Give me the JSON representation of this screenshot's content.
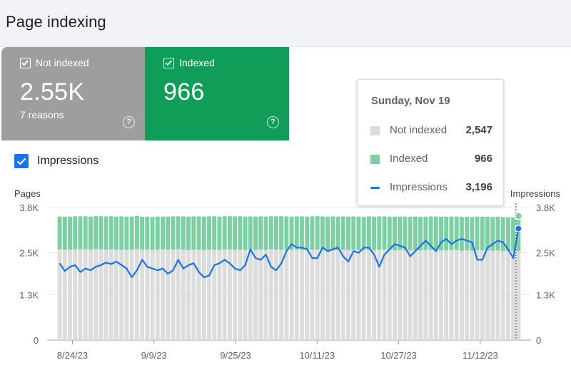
{
  "header": {
    "title": "Page indexing"
  },
  "cards": {
    "not_indexed": {
      "label": "Not indexed",
      "value": "2.55K",
      "sub": "7 reasons",
      "help": "?"
    },
    "indexed": {
      "label": "Indexed",
      "value": "966",
      "help": "?"
    }
  },
  "impressions_toggle": {
    "label": "Impressions",
    "checked": true
  },
  "tooltip": {
    "date": "Sunday, Nov 19",
    "rows": [
      {
        "name": "Not indexed",
        "value": "2,547"
      },
      {
        "name": "Indexed",
        "value": "966"
      },
      {
        "name": "Impressions",
        "value": "3,196"
      }
    ]
  },
  "colors": {
    "not_indexed": "#dcdcdc",
    "indexed": "#7dcfa4",
    "impressions": "#1a73e8",
    "card_not_indexed": "#9e9e9e",
    "card_indexed": "#0f9d58"
  },
  "chart_data": {
    "type": "bar",
    "title": "",
    "left_axis_label": "Pages",
    "right_axis_label": "Impressions",
    "y_ticks": [
      {
        "value": 0,
        "label": "0"
      },
      {
        "value": 1300,
        "label": "1.3K"
      },
      {
        "value": 2500,
        "label": "2.5K"
      },
      {
        "value": 3800,
        "label": "3.8K"
      }
    ],
    "ylim": [
      0,
      3800
    ],
    "x_start": "2023-08-21",
    "x_end": "2023-11-20",
    "x_ticks": [
      "8/24/23",
      "9/9/23",
      "9/25/23",
      "10/11/23",
      "10/27/23",
      "11/12/23"
    ],
    "x_tick_dates": [
      "2023-08-24",
      "2023-09-09",
      "2023-09-25",
      "2023-10-11",
      "2023-10-27",
      "2023-11-12"
    ],
    "highlight_date": "2023-11-19",
    "series": [
      {
        "name": "Not indexed",
        "type": "stacked-bar",
        "values": [
          2600,
          2590,
          2590,
          2600,
          2600,
          2610,
          2590,
          2610,
          2600,
          2590,
          2600,
          2590,
          2590,
          2580,
          2590,
          2600,
          2590,
          2590,
          2580,
          2590,
          2600,
          2590,
          2590,
          2600,
          2590,
          2580,
          2590,
          2590,
          2580,
          2590,
          2590,
          2580,
          2600,
          2600,
          2590,
          2590,
          2580,
          2590,
          2580,
          2590,
          2580,
          2600,
          2590,
          2590,
          2590,
          2580,
          2590,
          2590,
          2580,
          2590,
          2600,
          2590,
          2580,
          2590,
          2580,
          2590,
          2580,
          2590,
          2580,
          2570,
          2590,
          2580,
          2590,
          2590,
          2580,
          2570,
          2580,
          2580,
          2570,
          2580,
          2570,
          2580,
          2590,
          2580,
          2570,
          2570,
          2580,
          2580,
          2560,
          2570,
          2560,
          2580,
          2570,
          2570,
          2560,
          2570,
          2550,
          2550,
          2550,
          2547
        ]
      },
      {
        "name": "Indexed",
        "type": "stacked-bar",
        "values": [
          940,
          945,
          950,
          950,
          945,
          940,
          950,
          945,
          950,
          955,
          950,
          950,
          955,
          960,
          950,
          960,
          945,
          945,
          950,
          950,
          940,
          950,
          955,
          950,
          955,
          960,
          955,
          955,
          960,
          955,
          958,
          960,
          950,
          950,
          955,
          960,
          960,
          955,
          960,
          955,
          960,
          950,
          955,
          960,
          955,
          960,
          955,
          955,
          960,
          955,
          950,
          955,
          960,
          955,
          960,
          955,
          960,
          955,
          960,
          965,
          955,
          960,
          955,
          955,
          960,
          965,
          960,
          960,
          965,
          960,
          965,
          960,
          955,
          960,
          965,
          965,
          960,
          960,
          970,
          965,
          970,
          960,
          965,
          965,
          970,
          965,
          970,
          970,
          968,
          966
        ]
      },
      {
        "name": "Impressions",
        "type": "line",
        "values": [
          2200,
          1980,
          2100,
          2150,
          1950,
          2050,
          2000,
          2100,
          2150,
          2220,
          2180,
          2250,
          2150,
          2050,
          1800,
          2000,
          2300,
          2100,
          2050,
          2000,
          2050,
          1900,
          2000,
          2300,
          2050,
          2150,
          2200,
          1950,
          1800,
          1850,
          2150,
          2200,
          2300,
          2200,
          2050,
          2000,
          2150,
          2600,
          2350,
          2300,
          2450,
          2100,
          2000,
          2200,
          2550,
          2750,
          2650,
          2650,
          2600,
          2350,
          2350,
          2650,
          2550,
          2600,
          2650,
          2400,
          2250,
          2550,
          2500,
          2650,
          2650,
          2450,
          2100,
          2450,
          2600,
          2750,
          2700,
          2650,
          2400,
          2550,
          2700,
          2850,
          2700,
          2550,
          2800,
          2900,
          2750,
          2850,
          2900,
          2850,
          2800,
          2300,
          2300,
          2650,
          2750,
          2850,
          2800,
          2600,
          2350,
          3196
        ]
      }
    ]
  }
}
